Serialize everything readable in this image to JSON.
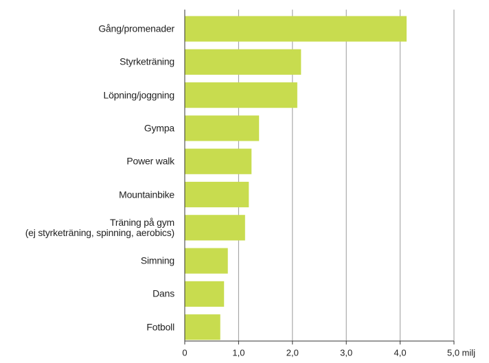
{
  "chart_data": {
    "type": "bar",
    "orientation": "horizontal",
    "categories": [
      "Gång/promenader",
      "Styrketräning",
      "Löpning/joggning",
      "Gympa",
      "Power  walk",
      "Mountainbike",
      "Träning på gym\n(ej styrketräning, spinning, aerobics)",
      "Simning",
      "Dans",
      "Fotboll"
    ],
    "values": [
      4.12,
      2.16,
      2.09,
      1.38,
      1.24,
      1.19,
      1.12,
      0.8,
      0.73,
      0.66
    ],
    "color": "#c8dc4f",
    "xlim": [
      0,
      5
    ],
    "xticks": [
      0,
      {
        "value": 1,
        "label": "1,0"
      },
      {
        "value": 2,
        "label": "2,0"
      },
      {
        "value": 3,
        "label": "3,0"
      },
      {
        "value": 4,
        "label": "4,0"
      },
      {
        "value": 5,
        "label": "5,0 milj"
      }
    ],
    "grid": true
  }
}
